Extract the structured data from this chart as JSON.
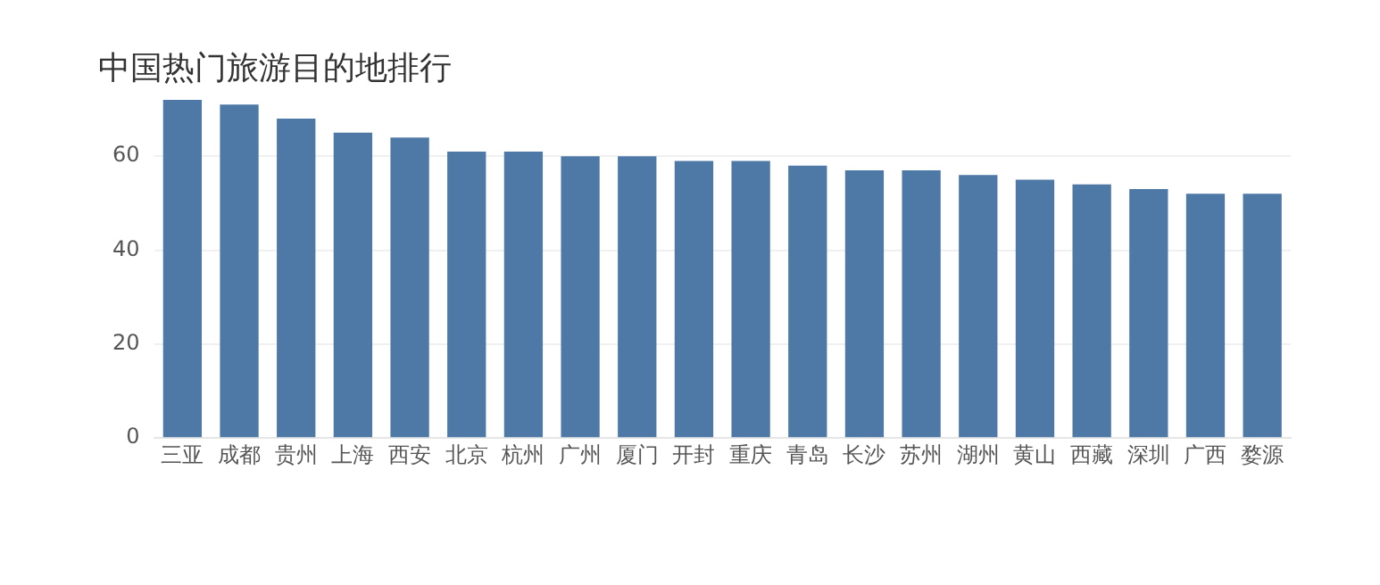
{
  "chart_data": {
    "type": "bar",
    "title": "中国热门旅游目的地排行",
    "categories": [
      "三亚",
      "成都",
      "贵州",
      "上海",
      "西安",
      "北京",
      "杭州",
      "广州",
      "厦门",
      "开封",
      "重庆",
      "青岛",
      "长沙",
      "苏州",
      "湖州",
      "黄山",
      "西藏",
      "深圳",
      "广西",
      "婺源"
    ],
    "values": [
      72,
      71,
      68,
      65,
      64,
      61,
      61,
      60,
      60,
      59,
      59,
      58,
      57,
      57,
      56,
      55,
      54,
      53,
      52,
      52
    ],
    "color": "#4e79a7",
    "ylim": [
      0,
      72
    ],
    "yticks": [
      0,
      20,
      40,
      60
    ],
    "grid": "y"
  }
}
